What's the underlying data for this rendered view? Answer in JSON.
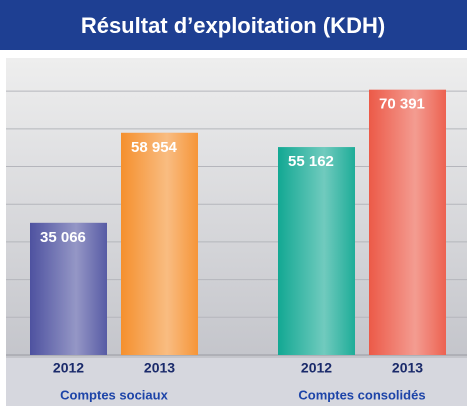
{
  "chart_data": {
    "type": "bar",
    "title": "Résultat d’exploitation (KDH)",
    "categories": [
      "Comptes sociaux",
      "Comptes consolidés"
    ],
    "series": [
      {
        "name": "2012",
        "colors": [
          "#4e52a0",
          "#12a893"
        ],
        "values": [
          35066,
          55162
        ],
        "value_labels": [
          "35 066",
          "55 162"
        ]
      },
      {
        "name": "2013",
        "colors": [
          "#f5902e",
          "#ec5a48"
        ],
        "values": [
          58954,
          70391
        ],
        "value_labels": [
          "58 954",
          "70 391"
        ]
      }
    ],
    "ylim": [
      0,
      78000
    ],
    "yticks": [
      0,
      10000,
      20000,
      30000,
      40000,
      50000,
      60000,
      70000
    ],
    "grid": true
  }
}
